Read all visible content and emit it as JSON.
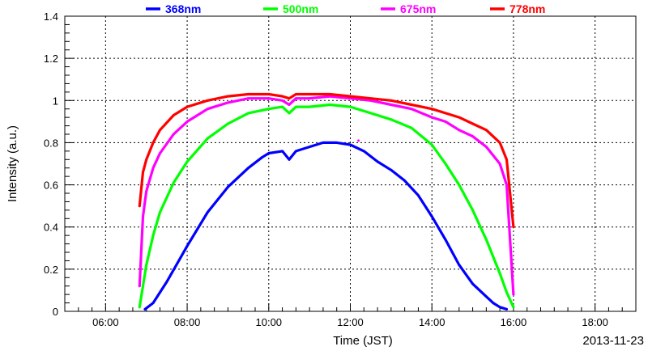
{
  "chart_data": {
    "type": "line",
    "xlabel": "Time (JST)",
    "ylabel": "Intensity (a.u.)",
    "date_label": "2013-11-23",
    "xlim": [
      "05:00",
      "19:00"
    ],
    "ylim": [
      0,
      1.4
    ],
    "grid": true,
    "legend_position": "top",
    "x_ticks": [
      "06:00",
      "08:00",
      "10:00",
      "12:00",
      "14:00",
      "16:00",
      "18:00"
    ],
    "y_ticks": [
      "0",
      "0.2",
      "0.4",
      "0.6",
      "0.8",
      "1",
      "1.2",
      "1.4"
    ],
    "series": [
      {
        "name": "368nm",
        "color": "#0000ff",
        "x": [
          "06:58",
          "07:10",
          "07:30",
          "08:00",
          "08:30",
          "09:00",
          "09:30",
          "09:50",
          "10:00",
          "10:20",
          "10:30",
          "10:40",
          "11:00",
          "11:20",
          "11:40",
          "12:00",
          "12:20",
          "12:40",
          "13:00",
          "13:20",
          "13:40",
          "14:00",
          "14:20",
          "14:40",
          "15:00",
          "15:20",
          "15:30",
          "15:40",
          "15:50"
        ],
        "y": [
          0.01,
          0.04,
          0.14,
          0.31,
          0.47,
          0.59,
          0.68,
          0.73,
          0.75,
          0.76,
          0.72,
          0.76,
          0.78,
          0.8,
          0.8,
          0.79,
          0.76,
          0.71,
          0.67,
          0.62,
          0.55,
          0.45,
          0.34,
          0.22,
          0.13,
          0.07,
          0.04,
          0.02,
          0.01
        ]
      },
      {
        "name": "500nm",
        "color": "#00ff00",
        "x": [
          "06:50",
          "06:55",
          "07:00",
          "07:10",
          "07:20",
          "07:40",
          "08:00",
          "08:30",
          "09:00",
          "09:30",
          "10:00",
          "10:20",
          "10:30",
          "10:40",
          "11:00",
          "11:30",
          "12:00",
          "12:30",
          "13:00",
          "13:30",
          "14:00",
          "14:20",
          "14:40",
          "15:00",
          "15:20",
          "15:40",
          "15:50",
          "16:00"
        ],
        "y": [
          0.02,
          0.12,
          0.22,
          0.36,
          0.47,
          0.61,
          0.71,
          0.82,
          0.89,
          0.94,
          0.96,
          0.97,
          0.94,
          0.97,
          0.97,
          0.98,
          0.97,
          0.94,
          0.91,
          0.87,
          0.79,
          0.7,
          0.6,
          0.48,
          0.34,
          0.18,
          0.09,
          0.02
        ]
      },
      {
        "name": "675nm",
        "color": "#ff00ff",
        "x": [
          "06:50",
          "06:55",
          "07:00",
          "07:10",
          "07:20",
          "07:40",
          "08:00",
          "08:30",
          "09:00",
          "09:30",
          "10:00",
          "10:20",
          "10:30",
          "10:40",
          "11:00",
          "11:30",
          "12:00",
          "12:30",
          "13:00",
          "13:30",
          "14:00",
          "14:20",
          "14:40",
          "15:00",
          "15:20",
          "15:40",
          "15:50",
          "16:00"
        ],
        "y": [
          0.12,
          0.45,
          0.57,
          0.68,
          0.75,
          0.84,
          0.9,
          0.96,
          0.99,
          1.01,
          1.01,
          1.0,
          0.98,
          1.01,
          1.01,
          1.02,
          1.01,
          1.0,
          0.98,
          0.96,
          0.92,
          0.9,
          0.86,
          0.83,
          0.78,
          0.7,
          0.6,
          0.08
        ]
      },
      {
        "name": "778nm",
        "color": "#ff0000",
        "x": [
          "06:50",
          "06:55",
          "07:00",
          "07:10",
          "07:20",
          "07:40",
          "08:00",
          "08:30",
          "09:00",
          "09:30",
          "10:00",
          "10:20",
          "10:30",
          "10:40",
          "11:00",
          "11:30",
          "12:00",
          "12:30",
          "13:00",
          "13:30",
          "14:00",
          "14:20",
          "14:40",
          "15:00",
          "15:20",
          "15:40",
          "15:50",
          "16:00"
        ],
        "y": [
          0.5,
          0.66,
          0.72,
          0.8,
          0.86,
          0.93,
          0.97,
          1.0,
          1.02,
          1.03,
          1.03,
          1.02,
          1.01,
          1.03,
          1.03,
          1.03,
          1.02,
          1.01,
          1.0,
          0.98,
          0.96,
          0.94,
          0.92,
          0.89,
          0.86,
          0.8,
          0.72,
          0.4
        ]
      }
    ],
    "annotations": [
      {
        "series": "675nm",
        "x": "12:12",
        "y": 0.81
      }
    ]
  }
}
